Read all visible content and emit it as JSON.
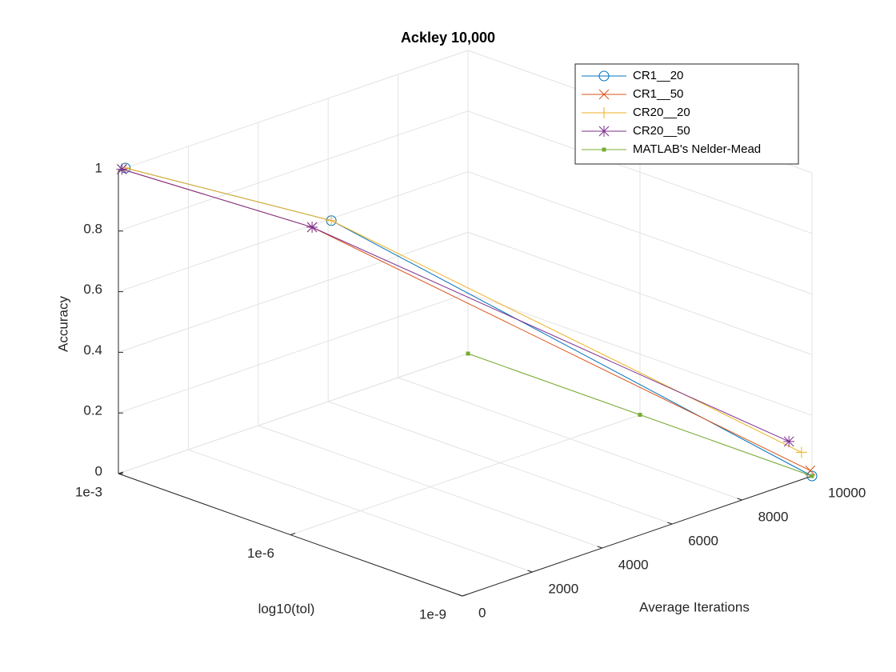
{
  "chart_data": {
    "type": "line3d",
    "title": "Ackley 10,000",
    "xlabel": "log10(tol)",
    "ylabel": "Average Iterations",
    "zlabel": "Accuracy",
    "xlim": [
      -3,
      -9
    ],
    "xticks": [
      {
        "value": -3,
        "label": "1e-3"
      },
      {
        "value": -6,
        "label": "1e-6"
      },
      {
        "value": -9,
        "label": "1e-9"
      }
    ],
    "ylim": [
      0,
      10000
    ],
    "yticks": [
      0,
      2000,
      4000,
      6000,
      8000,
      10000
    ],
    "zlim": [
      0,
      1
    ],
    "zticks": [
      0,
      0.2,
      0.4,
      0.6,
      0.8,
      1
    ],
    "grid": true,
    "legend": "upper right",
    "series": [
      {
        "name": "CR1__20",
        "color": "#0072BD",
        "marker": "o",
        "x": [
          -3,
          -6,
          -9
        ],
        "y": [
          200,
          1170,
          10000
        ],
        "z": [
          1,
          0.99,
          0
        ]
      },
      {
        "name": "CR1__50",
        "color": "#D95319",
        "marker": "x",
        "x": [
          -3,
          -6,
          -9
        ],
        "y": [
          100,
          620,
          9950
        ],
        "z": [
          1,
          0.99,
          0.02
        ]
      },
      {
        "name": "CR20__20",
        "color": "#EDB120",
        "marker": "+",
        "x": [
          -3,
          -6,
          -9
        ],
        "y": [
          200,
          1170,
          9700
        ],
        "z": [
          1,
          0.99,
          0.09
        ]
      },
      {
        "name": "CR20__50",
        "color": "#7E2F8E",
        "marker": "*",
        "x": [
          -3,
          -6,
          -9
        ],
        "y": [
          100,
          620,
          9340
        ],
        "z": [
          1,
          0.99,
          0.14
        ]
      },
      {
        "name": "MATLAB's Nelder-Mead",
        "color": "#77AC30",
        "marker": ".",
        "x": [
          -3,
          -6,
          -9
        ],
        "y": [
          10000,
          10000,
          10000
        ],
        "z": [
          0,
          0,
          0
        ]
      }
    ]
  }
}
